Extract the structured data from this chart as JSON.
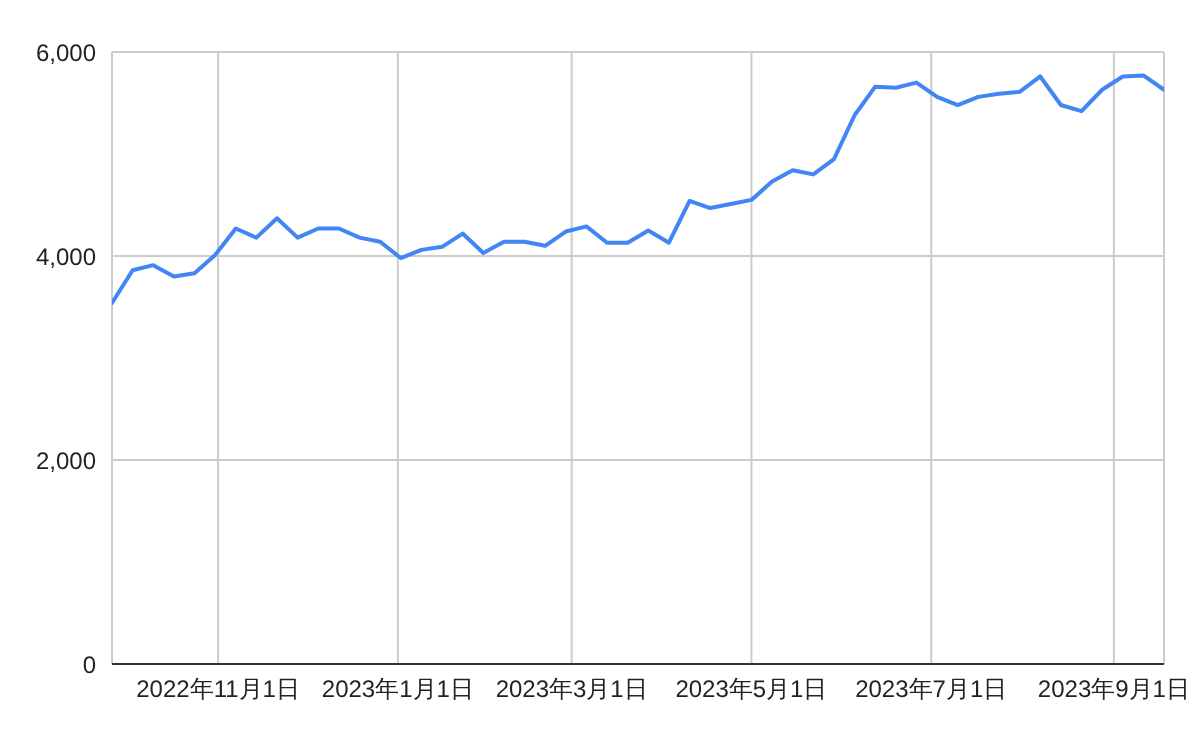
{
  "chart_data": {
    "type": "line",
    "x": [
      "2022-09-26",
      "2022-10-03",
      "2022-10-10",
      "2022-10-17",
      "2022-10-24",
      "2022-10-31",
      "2022-11-07",
      "2022-11-14",
      "2022-11-21",
      "2022-11-28",
      "2022-12-05",
      "2022-12-12",
      "2022-12-19",
      "2022-12-26",
      "2023-01-02",
      "2023-01-09",
      "2023-01-16",
      "2023-01-23",
      "2023-01-30",
      "2023-02-06",
      "2023-02-13",
      "2023-02-20",
      "2023-02-27",
      "2023-03-06",
      "2023-03-13",
      "2023-03-20",
      "2023-03-27",
      "2023-04-03",
      "2023-04-10",
      "2023-04-17",
      "2023-04-24",
      "2023-05-01",
      "2023-05-08",
      "2023-05-15",
      "2023-05-22",
      "2023-05-29",
      "2023-06-05",
      "2023-06-12",
      "2023-06-19",
      "2023-06-26",
      "2023-07-03",
      "2023-07-10",
      "2023-07-17",
      "2023-07-24",
      "2023-07-31",
      "2023-08-07",
      "2023-08-14",
      "2023-08-21",
      "2023-08-28",
      "2023-09-04",
      "2023-09-11",
      "2023-09-18"
    ],
    "series": [
      {
        "color": "#4285f4",
        "values": [
          3540,
          3860,
          3910,
          3800,
          3830,
          4010,
          4270,
          4180,
          4370,
          4180,
          4270,
          4270,
          4180,
          4140,
          3980,
          4060,
          4090,
          4220,
          4030,
          4140,
          4140,
          4100,
          4240,
          4290,
          4130,
          4130,
          4250,
          4130,
          4540,
          4470,
          4510,
          4550,
          4730,
          4840,
          4800,
          4950,
          5380,
          5660,
          5650,
          5700,
          5560,
          5480,
          5560,
          5590,
          5610,
          5760,
          5480,
          5420,
          5630,
          5760,
          5770,
          5630
        ]
      }
    ],
    "xlim": [
      "2022-09-26",
      "2023-09-18"
    ],
    "xticks": [
      {
        "value": "2022-11-01",
        "label": "2022年11月1日"
      },
      {
        "value": "2023-01-01",
        "label": "2023年1月1日"
      },
      {
        "value": "2023-03-01",
        "label": "2023年3月1日"
      },
      {
        "value": "2023-05-01",
        "label": "2023年5月1日"
      },
      {
        "value": "2023-07-01",
        "label": "2023年7月1日"
      },
      {
        "value": "2023-09-01",
        "label": "2023年9月1日"
      }
    ],
    "ylim": [
      0,
      6000
    ],
    "yticks": [
      0,
      {
        "value": 2000,
        "label": "2,000"
      },
      {
        "value": 4000,
        "label": "4,000"
      },
      {
        "value": 6000,
        "label": "6,000"
      }
    ],
    "grid": true,
    "marker": "none",
    "line_style": "solid"
  }
}
